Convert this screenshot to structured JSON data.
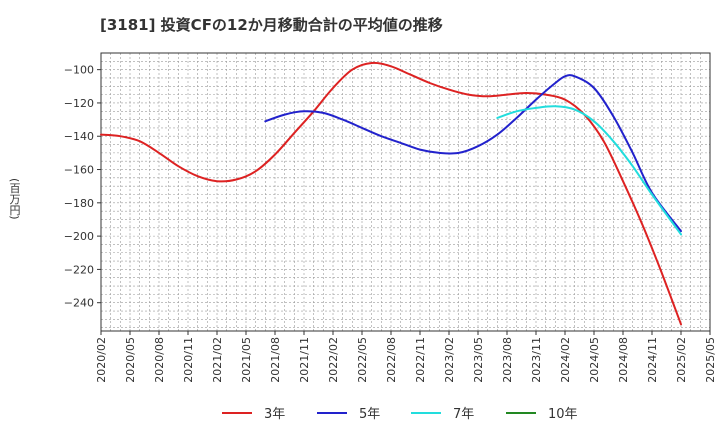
{
  "title": "[3181]  投資CFの12か月移動合計の平均値の推移",
  "ylabel": "(百万円)",
  "chart_data": {
    "type": "line",
    "title": "[3181]  投資CFの12か月移動合計の平均値の推移",
    "ylabel": "(百万円)",
    "xlabel": "",
    "ylim": [
      -257,
      -90
    ],
    "xlim": [
      "2020/02",
      "2025/05"
    ],
    "grid": true,
    "legend": "bottom",
    "yticks": [
      -100,
      -120,
      -140,
      -160,
      -180,
      -200,
      -220,
      -240
    ],
    "xticks": [
      "2020/02",
      "2020/05",
      "2020/08",
      "2020/11",
      "2021/02",
      "2021/05",
      "2021/08",
      "2021/11",
      "2022/02",
      "2022/05",
      "2022/08",
      "2022/11",
      "2023/02",
      "2023/05",
      "2023/08",
      "2023/11",
      "2024/02",
      "2024/05",
      "2024/08",
      "2024/11",
      "2025/02",
      "2025/05"
    ],
    "series": [
      {
        "name": "3年",
        "color": "#dd2222",
        "points": [
          [
            "2020/02",
            -139
          ],
          [
            "2020/04",
            -140
          ],
          [
            "2020/06",
            -143
          ],
          [
            "2020/08",
            -150
          ],
          [
            "2020/10",
            -158
          ],
          [
            "2020/12",
            -164
          ],
          [
            "2021/02",
            -167
          ],
          [
            "2021/04",
            -166
          ],
          [
            "2021/06",
            -161
          ],
          [
            "2021/08",
            -151
          ],
          [
            "2021/10",
            -138
          ],
          [
            "2021/12",
            -125
          ],
          [
            "2022/02",
            -111
          ],
          [
            "2022/04",
            -100
          ],
          [
            "2022/06",
            -96
          ],
          [
            "2022/08",
            -98
          ],
          [
            "2022/10",
            -103
          ],
          [
            "2022/12",
            -108
          ],
          [
            "2023/02",
            -112
          ],
          [
            "2023/04",
            -115
          ],
          [
            "2023/06",
            -116
          ],
          [
            "2023/08",
            -115
          ],
          [
            "2023/10",
            -114
          ],
          [
            "2023/12",
            -115
          ],
          [
            "2024/02",
            -118
          ],
          [
            "2024/04",
            -127
          ],
          [
            "2024/06",
            -143
          ],
          [
            "2024/08",
            -167
          ],
          [
            "2024/10",
            -193
          ],
          [
            "2024/12",
            -222
          ],
          [
            "2025/02",
            -253
          ]
        ]
      },
      {
        "name": "5年",
        "color": "#2222cc",
        "points": [
          [
            "2021/07",
            -131
          ],
          [
            "2021/09",
            -127
          ],
          [
            "2021/11",
            -125
          ],
          [
            "2022/01",
            -126
          ],
          [
            "2022/03",
            -130
          ],
          [
            "2022/05",
            -135
          ],
          [
            "2022/07",
            -140
          ],
          [
            "2022/09",
            -144
          ],
          [
            "2022/11",
            -148
          ],
          [
            "2023/01",
            -150
          ],
          [
            "2023/03",
            -150
          ],
          [
            "2023/05",
            -146
          ],
          [
            "2023/07",
            -139
          ],
          [
            "2023/09",
            -129
          ],
          [
            "2023/11",
            -118
          ],
          [
            "2024/01",
            -108
          ],
          [
            "2024/02",
            -104
          ],
          [
            "2024/03",
            -104
          ],
          [
            "2024/05",
            -111
          ],
          [
            "2024/07",
            -128
          ],
          [
            "2024/09",
            -150
          ],
          [
            "2024/11",
            -174
          ],
          [
            "2025/02",
            -197
          ]
        ]
      },
      {
        "name": "7年",
        "color": "#22dddd",
        "points": [
          [
            "2023/07",
            -129
          ],
          [
            "2023/09",
            -125
          ],
          [
            "2023/11",
            -123
          ],
          [
            "2024/01",
            -122
          ],
          [
            "2024/03",
            -124
          ],
          [
            "2024/05",
            -131
          ],
          [
            "2024/07",
            -143
          ],
          [
            "2024/09",
            -158
          ],
          [
            "2024/11",
            -175
          ],
          [
            "2025/02",
            -199
          ]
        ]
      },
      {
        "name": "10年",
        "color": "#228822",
        "points": []
      }
    ]
  }
}
